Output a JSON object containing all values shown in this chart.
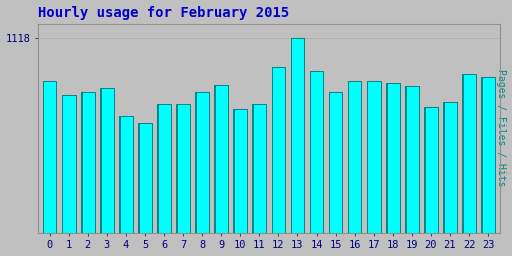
{
  "title": "Hourly usage for February 2015",
  "ylabel": "Pages / Files / Hits",
  "hours": [
    0,
    1,
    2,
    3,
    4,
    5,
    6,
    7,
    8,
    9,
    10,
    11,
    12,
    13,
    14,
    15,
    16,
    17,
    18,
    19,
    20,
    21,
    22,
    23
  ],
  "values": [
    870,
    790,
    810,
    830,
    670,
    630,
    740,
    740,
    810,
    845,
    710,
    740,
    950,
    1118,
    930,
    810,
    870,
    870,
    860,
    840,
    720,
    750,
    910,
    895
  ],
  "bar_color": "#00FFFF",
  "bar_edge_color": "#007070",
  "bar_left_color": "#008888",
  "background_color": "#C0C0C0",
  "plot_bg_color": "#C0C0C0",
  "title_color": "#0000CC",
  "ylabel_color": "#008888",
  "tick_label_color": "#000080",
  "grid_color": "#AAAAAA",
  "ylim_min": 0,
  "ylim_max": 1200,
  "ytick_val": 1118,
  "ytick_label": "1118",
  "title_fontsize": 10,
  "ylabel_fontsize": 7,
  "tick_fontsize": 7.5
}
